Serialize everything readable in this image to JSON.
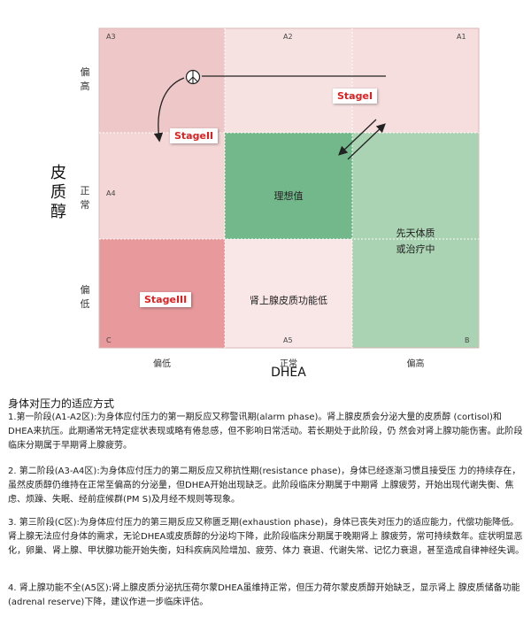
{
  "diagram": {
    "y_axis_title": "皮质醇",
    "y_levels": [
      "偏高",
      "正常",
      "偏低"
    ],
    "x_axis_title": "DHEA",
    "x_levels": [
      "偏低",
      "正常",
      "偏高"
    ],
    "zone_codes": {
      "a3": "A3",
      "a2": "A2",
      "a1": "A1",
      "a4": "A4",
      "c": "C",
      "a5": "A5",
      "b": "B"
    },
    "stages": {
      "stage1": "StageI",
      "stage2": "StageII",
      "stage3": "StageIII"
    },
    "zones": {
      "ideal": "理想值",
      "congenital": [
        "先天体质",
        "或治疗中"
      ],
      "adrenal_low": "肾上腺皮质功能低"
    },
    "colors": {
      "pale_pink": "#f6dede",
      "pink": "#eec8c8",
      "light_pink": "#f9e7e7",
      "mid_green": "#72b88a",
      "light_green": "#a9d3b2",
      "red": "#e7999b",
      "stage_red": "#e02020"
    }
  },
  "text": {
    "heading": "身体对压力的适应方式",
    "p1": "1.第一阶段(A1-A2区):为身体应付压力的第一期反应又称警讯期(alarm phase)。肾上腺皮质会分泌大量的皮质醇 (cortisol)和DHEA来抗压。此期通常无特定症状表现或略有倦怠感，但不影响日常活动。若长期处于此阶段，仍 然会对肾上腺功能伤害。此阶段临床分期属于早期肾上腺疲劳。",
    "p2": "2. 第二阶段(A3-A4区):为身体应付压力的第二期反应又称抗性期(resistance phase)，身体已经逐渐习惯且接受压 力的持续存在，虽然皮质醇仍维持在正常至偏高的分泌量，但DHEA开始出现缺乏。此阶段临床分期属于中期肾 上腺疲劳，开始出现代谢失衡、焦虑、烦躁、失眠、经前症候群(PM S)及月经不规则等现象。",
    "p3": "3. 第三阶段(C区):为身体应付压力的第三期反应又称匮乏期(exhaustion phase)，身体已丧失对压力的适应能力，代偿功能降低。肾上腺无法应付身体的需求，无论DHEA或皮质醇的分泌均下降，此阶段临床分期属于晚期肾上 腺疲劳，常可持续数年。症状明显恶化，卵巢、肾上腺、甲状腺功能开始失衡，妇科疾病风险增加、疲劳、体力 衰退、代谢失常、记忆力衰退，甚至造成自律神经失调。",
    "p4": "4. 肾上腺功能不全(A5区):肾上腺皮质分泌抗压荷尔蒙DHEA虽维持正常，但压力荷尔蒙皮质醇开始缺乏，显示肾上 腺皮质储备功能(adrenal reserve)下降，建议作进一步临床评估。"
  }
}
